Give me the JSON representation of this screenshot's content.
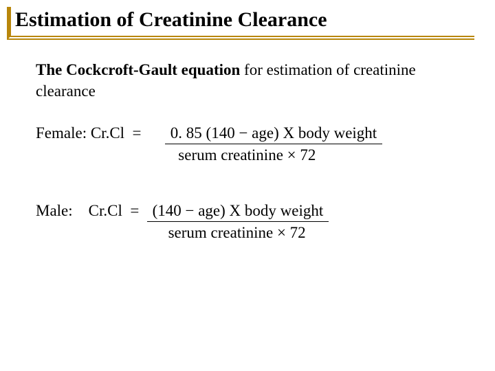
{
  "title": "Estimation of Creatinine Clearance",
  "intro": {
    "eqname": "The Cockcroft-Gault equation",
    "rest": " for estimation of creatinine clearance"
  },
  "female": {
    "label": "Female: Cr.Cl  =      ",
    "numerator": " 0. 85 (140 − age) X body weight ",
    "denomIndent": "   ",
    "denominator": "serum creatinine × 72"
  },
  "male": {
    "label": "Male:    Cr.Cl  =  ",
    "numerator": " (140 − age) X body weight ",
    "denomIndent": "     ",
    "denominator": "serum creatinine × 72"
  },
  "colors": {
    "accent": "#b8860b",
    "text": "#000000",
    "background": "#ffffff"
  }
}
